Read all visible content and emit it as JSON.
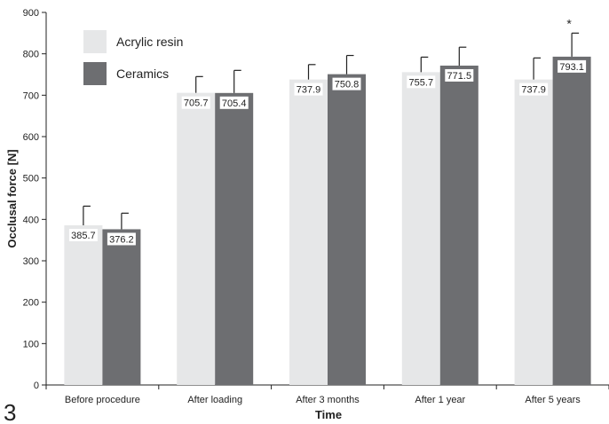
{
  "panel_label": "3",
  "chart_data": {
    "type": "bar",
    "title": "",
    "xlabel": "Time",
    "ylabel": "Occlusal force [N]",
    "ylim": [
      0,
      900
    ],
    "yticks": [
      0,
      100,
      200,
      300,
      400,
      500,
      600,
      700,
      800,
      900
    ],
    "grid": false,
    "legend_position": "top-left",
    "categories": [
      "Before procedure",
      "After loading",
      "After 3 months",
      "After 1 year",
      "After 5 years"
    ],
    "series": [
      {
        "name": "Acrylic resin",
        "color": "#e6e7e8",
        "values": [
          385.7,
          705.7,
          737.9,
          755.7,
          737.9
        ],
        "value_labels": [
          "385.7",
          "705.7",
          "737.9",
          "755.7",
          "737.9"
        ],
        "error_upper": [
          432,
          745,
          774,
          792,
          790
        ]
      },
      {
        "name": "Ceramics",
        "color": "#6d6e71",
        "values": [
          376.2,
          705.4,
          750.8,
          771.5,
          793.1
        ],
        "value_labels": [
          "376.2",
          "705.4",
          "750.8",
          "771.5",
          "793.1"
        ],
        "error_upper": [
          415,
          760,
          796,
          816,
          850
        ]
      }
    ],
    "annotations": [
      {
        "text": "*",
        "category_index": 4,
        "series_index": 1,
        "y": 880
      }
    ]
  }
}
